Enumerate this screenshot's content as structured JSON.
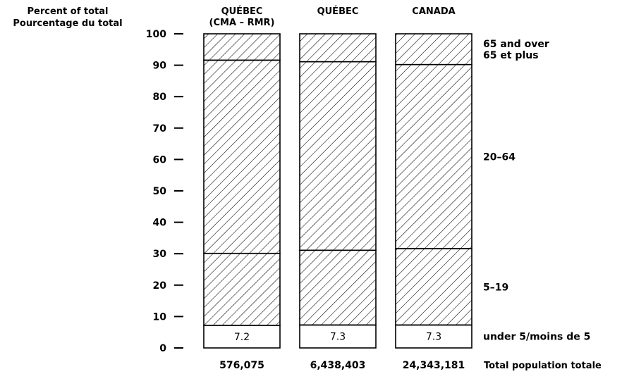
{
  "chart_data": {
    "type": "bar",
    "stacked": true,
    "title": "",
    "ylabel_lines": [
      "Percent of total",
      "Pourcentage du total"
    ],
    "ylim": [
      0,
      100
    ],
    "yticks": [
      0,
      10,
      20,
      30,
      40,
      50,
      60,
      70,
      80,
      90,
      100
    ],
    "categories": [
      {
        "label_lines": [
          "QUÉBEC",
          "(CMA – RMR)"
        ],
        "total_population": "576,075"
      },
      {
        "label_lines": [
          "QUÉBEC"
        ],
        "total_population": "6,438,403"
      },
      {
        "label_lines": [
          "CANADA"
        ],
        "total_population": "24,343,181"
      }
    ],
    "series": [
      {
        "name": "under 5/moins de 5",
        "values": [
          7.2,
          7.3,
          7.3
        ],
        "data_labels": [
          "7.2",
          "7.3",
          "7.3"
        ],
        "pattern": "none"
      },
      {
        "name": "5–19",
        "values": [
          22.9,
          23.8,
          24.3
        ],
        "pattern": "hatch"
      },
      {
        "name": "20–64",
        "values": [
          61.5,
          60.0,
          58.6
        ],
        "pattern": "hatch"
      },
      {
        "name": "65 and over / 65 et plus",
        "values": [
          8.4,
          8.9,
          9.8
        ],
        "pattern": "hatch"
      }
    ],
    "series_side_labels": [
      {
        "lines": [
          "under 5/moins de 5"
        ],
        "series": 0
      },
      {
        "lines": [
          "5–19"
        ],
        "series": 1
      },
      {
        "lines": [
          "20–64"
        ],
        "series": 2
      },
      {
        "lines": [
          "65 and over",
          "65 et plus"
        ],
        "series": 3
      }
    ],
    "total_row_label": "Total population totale",
    "grid": false,
    "legend": "right-side labels"
  }
}
